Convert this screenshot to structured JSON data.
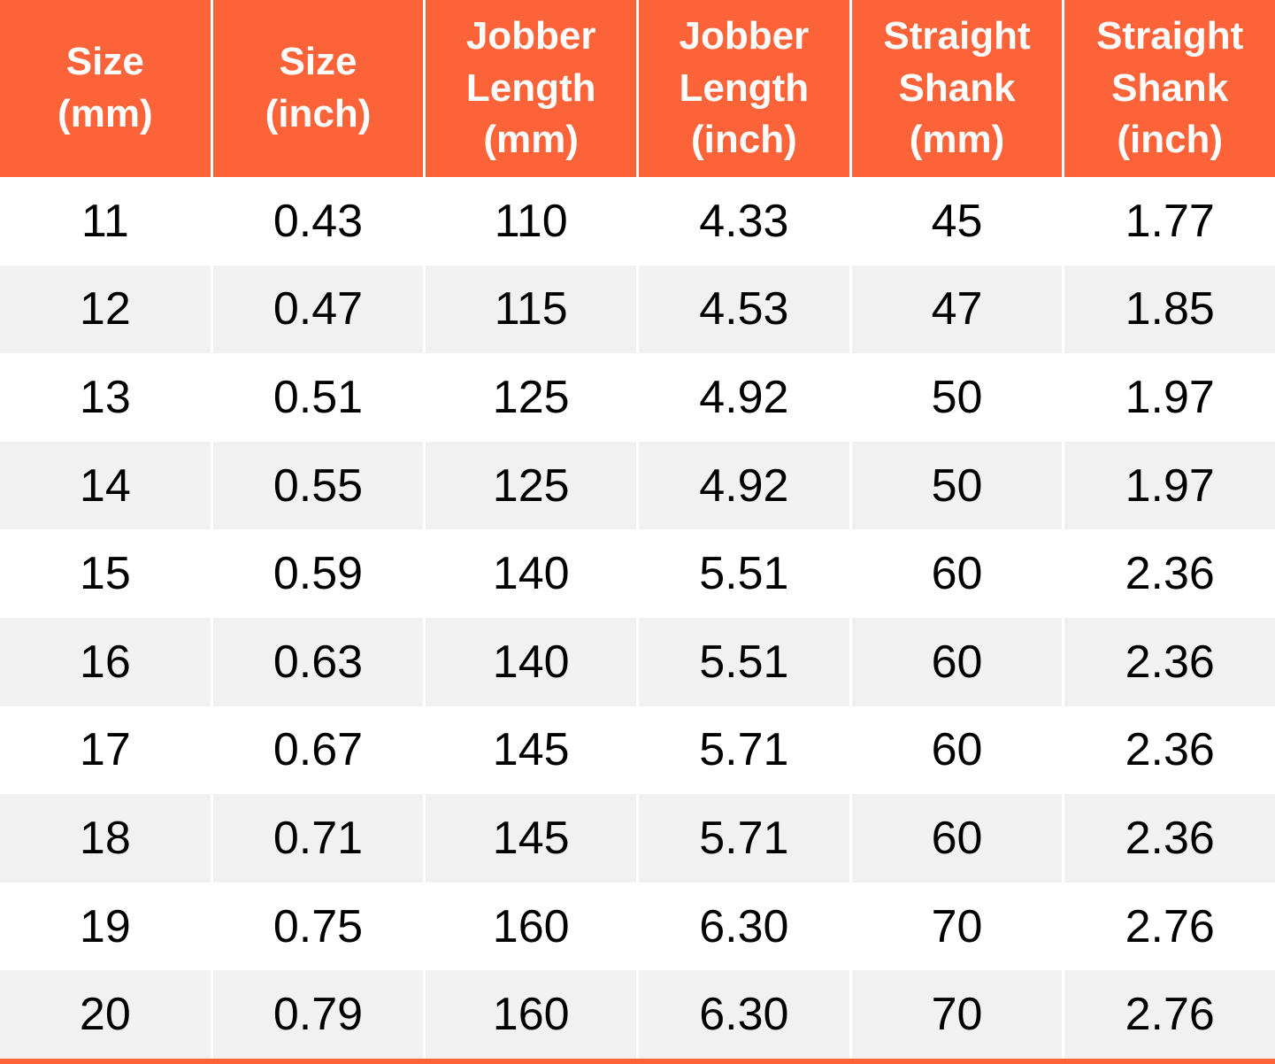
{
  "style": {
    "accent_color": "#FC6339",
    "alt_row_color": "#F1F1F1",
    "header_text_color": "#FFFFFF",
    "body_text_color": "#000000"
  },
  "chart_data": {
    "type": "table",
    "columns": [
      "Size\n(mm)",
      "Size\n(inch)",
      "Jobber\nLength\n(mm)",
      "Jobber\nLength\n(inch)",
      "Straight\nShank\n(mm)",
      "Straight\nShank\n(inch)"
    ],
    "rows": [
      [
        "11",
        "0.43",
        "110",
        "4.33",
        "45",
        "1.77"
      ],
      [
        "12",
        "0.47",
        "115",
        "4.53",
        "47",
        "1.85"
      ],
      [
        "13",
        "0.51",
        "125",
        "4.92",
        "50",
        "1.97"
      ],
      [
        "14",
        "0.55",
        "125",
        "4.92",
        "50",
        "1.97"
      ],
      [
        "15",
        "0.59",
        "140",
        "5.51",
        "60",
        "2.36"
      ],
      [
        "16",
        "0.63",
        "140",
        "5.51",
        "60",
        "2.36"
      ],
      [
        "17",
        "0.67",
        "145",
        "5.71",
        "60",
        "2.36"
      ],
      [
        "18",
        "0.71",
        "145",
        "5.71",
        "60",
        "2.36"
      ],
      [
        "19",
        "0.75",
        "160",
        "6.30",
        "70",
        "2.76"
      ],
      [
        "20",
        "0.79",
        "160",
        "6.30",
        "70",
        "2.76"
      ]
    ]
  }
}
